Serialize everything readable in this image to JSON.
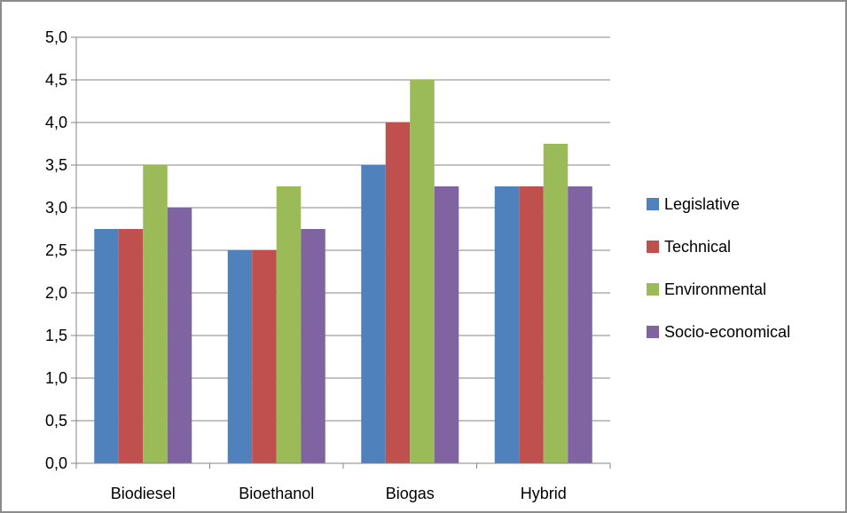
{
  "chart_data": {
    "type": "bar",
    "categories": [
      "Biodiesel",
      "Bioethanol",
      "Biogas",
      "Hybrid"
    ],
    "series": [
      {
        "name": "Legislative",
        "color": "#4f81bd",
        "values": [
          2.75,
          2.5,
          3.5,
          3.25
        ]
      },
      {
        "name": "Technical",
        "color": "#c0504d",
        "values": [
          2.75,
          2.5,
          4.0,
          3.25
        ]
      },
      {
        "name": "Environmental",
        "color": "#9bbb59",
        "values": [
          3.5,
          3.25,
          4.5,
          3.75
        ]
      },
      {
        "name": "Socio-economical",
        "color": "#8064a2",
        "values": [
          3.0,
          2.75,
          3.25,
          3.25
        ]
      }
    ],
    "yticks": [
      "0,0",
      "0,5",
      "1,0",
      "1,5",
      "2,0",
      "2,5",
      "3,0",
      "3,5",
      "4,0",
      "4,5",
      "5,0"
    ],
    "ylim": [
      0,
      5
    ],
    "ystep": 0.5,
    "grid": true,
    "legend_position": "right",
    "title": "",
    "xlabel": "",
    "ylabel": ""
  }
}
